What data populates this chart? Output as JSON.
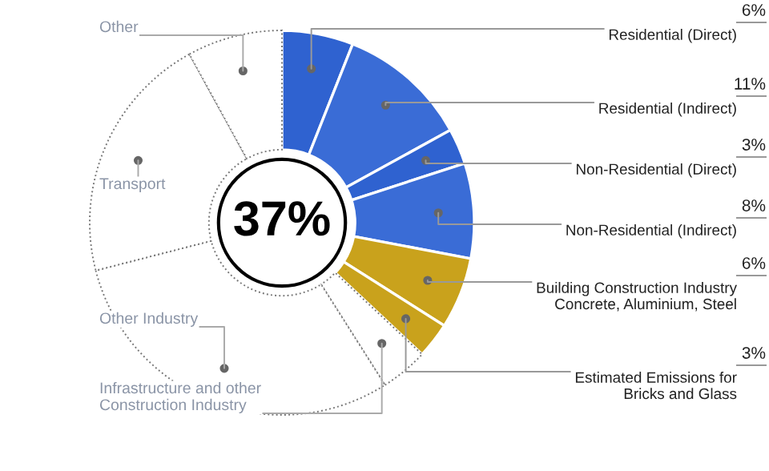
{
  "chart_data": {
    "type": "donut",
    "categories": [
      "Residential (Direct)",
      "Residential (Indirect)",
      "Non-Residential (Direct)",
      "Non-Residential (Indirect)",
      "Building Construction Industry\nConcrete, Aluminium, Steel",
      "Estimated Emissions for\nBricks and Glass",
      "Infrastructure and other\nConstruction Industry",
      "Other Industry",
      "Transport",
      "Other"
    ],
    "values": [
      6,
      11,
      3,
      8,
      6,
      3,
      4,
      30,
      21,
      8
    ],
    "colors": [
      "#2f62d0",
      "#3a6cd6",
      "#2f62d0",
      "#3a6cd6",
      "#c9a21c",
      "#c9a21c",
      "#ffffff",
      "#ffffff",
      "#ffffff",
      "#ffffff"
    ],
    "value_labels": [
      "6%",
      "11%",
      "3%",
      "8%",
      "6%",
      "3%",
      null,
      null,
      null,
      null
    ],
    "annotations": [
      "37%"
    ],
    "legend": false
  }
}
